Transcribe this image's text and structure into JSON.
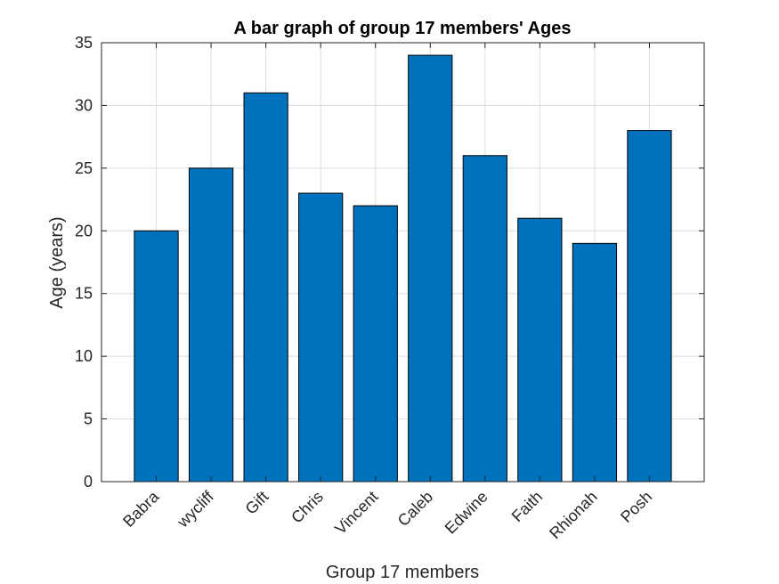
{
  "chart_data": {
    "type": "bar",
    "title": "A bar graph of group 17 members' Ages",
    "xlabel": "Group 17 members",
    "ylabel": "Age (years)",
    "categories": [
      "Babra",
      "wycliff",
      "Gift",
      "Chris",
      "Vincent",
      "Caleb",
      "Edwine",
      "Faith",
      "Rhionah",
      "Posh"
    ],
    "values": [
      20,
      25,
      31,
      23,
      22,
      34,
      26,
      21,
      19,
      28
    ],
    "ylim": [
      0,
      35
    ],
    "yticks": [
      0,
      5,
      10,
      15,
      20,
      25,
      30,
      35
    ],
    "grid": true,
    "bar_color": "#0072BD",
    "edge_color": "#000000"
  }
}
